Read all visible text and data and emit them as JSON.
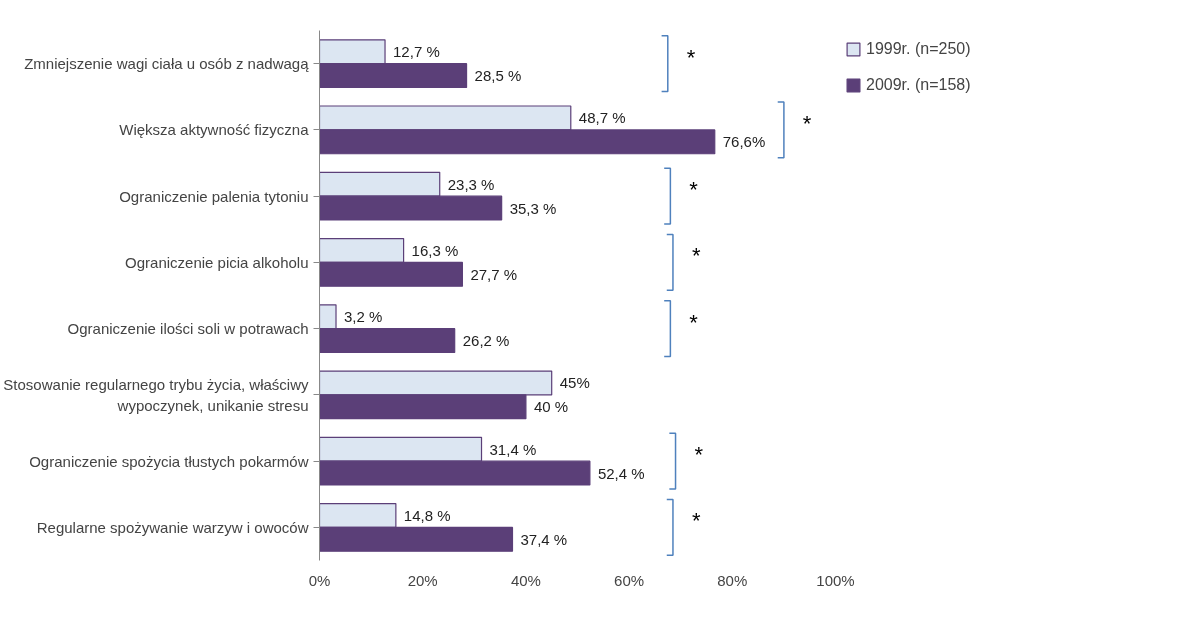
{
  "chart_data": {
    "type": "bar",
    "orientation": "horizontal",
    "categories": [
      "Zmniejszenie wagi ciała u osób z nadwagą",
      "Większa aktywność fizyczna",
      "Ograniczenie palenia tytoniu",
      "Ograniczenie picia alkoholu",
      "Ograniczenie ilości soli w potrawach",
      "Stosowanie regularnego trybu życia, właściwy wypoczynek, unikanie stresu",
      "Ograniczenie spożycia tłustych pokarmów",
      "Regularne spożywanie warzyw i owoców"
    ],
    "series": [
      {
        "name": "1999r. (n=250)",
        "color": "#dce6f2",
        "values": [
          12.7,
          48.7,
          23.3,
          16.3,
          3.2,
          45,
          31.4,
          14.8
        ],
        "value_labels": [
          "12,7 %",
          "48,7 %",
          "23,3 %",
          "16,3 %",
          "3,2 %",
          "45%",
          "31,4 %",
          "14,8 %"
        ]
      },
      {
        "name": "2009r. (n=158)",
        "color": "#5b3f78",
        "values": [
          28.5,
          76.6,
          35.3,
          27.7,
          26.2,
          40,
          52.4,
          37.4
        ],
        "value_labels": [
          "28,5 %",
          "76,6%",
          "35,3 %",
          "27,7 %",
          "26,2 %",
          "40 %",
          "52,4 %",
          "37,4 %"
        ]
      }
    ],
    "xlim": [
      0,
      100
    ],
    "xticks": [
      {
        "value": 0,
        "label": "0%"
      },
      {
        "value": 20,
        "label": "20%"
      },
      {
        "value": 40,
        "label": "40%"
      },
      {
        "value": 60,
        "label": "60%"
      },
      {
        "value": 80,
        "label": "80%"
      },
      {
        "value": 100,
        "label": "100%"
      }
    ],
    "grid": false,
    "legend": "right",
    "annotations": [
      "*",
      "*",
      "*",
      "*",
      "*",
      "*",
      "*"
    ]
  }
}
